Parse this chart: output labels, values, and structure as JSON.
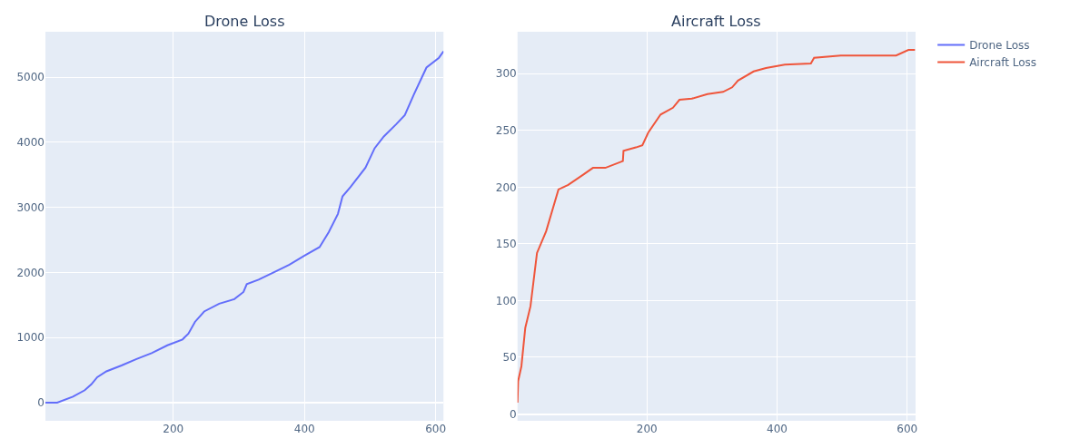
{
  "chart_data": [
    {
      "type": "line",
      "title": "Drone Loss",
      "xlim": [
        5,
        612
      ],
      "xticks": [
        200,
        400,
        600
      ],
      "ylim": [
        -280,
        5700
      ],
      "yticks": [
        0,
        1000,
        2000,
        3000,
        4000,
        5000
      ],
      "grid": true,
      "legend": "top right",
      "series": [
        {
          "name": "Drone Loss",
          "color": "#636efa",
          "x": [
            5,
            9,
            23,
            47,
            65,
            75,
            84,
            98,
            121,
            144,
            167,
            191,
            214,
            223,
            233,
            247,
            270,
            293,
            307,
            312,
            330,
            353,
            377,
            400,
            423,
            437,
            451,
            458,
            470,
            493,
            507,
            521,
            540,
            553,
            567,
            586,
            605,
            612
          ],
          "values": [
            0,
            0,
            0,
            90,
            190,
            280,
            390,
            480,
            570,
            670,
            760,
            880,
            970,
            1060,
            1240,
            1400,
            1520,
            1590,
            1700,
            1820,
            1890,
            2000,
            2120,
            2260,
            2390,
            2620,
            2900,
            3170,
            3310,
            3610,
            3910,
            4090,
            4280,
            4420,
            4740,
            5150,
            5300,
            5400
          ]
        }
      ]
    },
    {
      "type": "line",
      "title": "Aircraft Loss",
      "xlim": [
        1,
        613
      ],
      "xticks": [
        200,
        400,
        600
      ],
      "ylim": [
        -6,
        337
      ],
      "yticks": [
        0,
        50,
        100,
        150,
        200,
        250,
        300
      ],
      "grid": true,
      "legend": "top right",
      "series": [
        {
          "name": "Aircraft Loss",
          "color": "#ef553b",
          "x": [
            1,
            2,
            7,
            13,
            21,
            31,
            45,
            64,
            79,
            102,
            117,
            136,
            163,
            164,
            183,
            193,
            202,
            221,
            240,
            250,
            269,
            293,
            317,
            331,
            340,
            364,
            383,
            412,
            452,
            457,
            498,
            583,
            602,
            612
          ],
          "values": [
            10,
            29,
            42,
            76,
            95,
            142,
            161,
            198,
            202,
            211,
            217,
            217,
            223,
            232,
            235,
            237,
            248,
            264,
            270,
            277,
            278,
            282,
            284,
            288,
            294,
            302,
            305,
            308,
            309,
            314,
            316,
            316,
            321,
            321
          ]
        }
      ]
    }
  ]
}
